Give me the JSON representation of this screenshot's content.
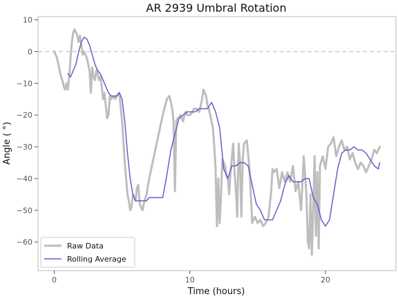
{
  "chart_data": {
    "type": "line",
    "title": "AR 2939 Umbral Rotation",
    "xlabel": "Time (hours)",
    "ylabel": "Angle ( °)",
    "xlim": [
      -1.2,
      25.2
    ],
    "ylim": [
      -69,
      11
    ],
    "x_ticks": [
      0,
      10,
      20
    ],
    "x_tick_labels": [
      "0",
      "10",
      "20"
    ],
    "y_ticks": [
      10,
      0,
      -10,
      -20,
      -30,
      -40,
      -50,
      -60
    ],
    "y_tick_labels": [
      "10",
      "0",
      "−10",
      "−20",
      "−30",
      "−40",
      "−50",
      "−60"
    ],
    "reference_line": {
      "y": 0,
      "style": "dashed"
    },
    "legend": {
      "position": "lower-left",
      "entries": [
        "Raw Data",
        "Rolling Average"
      ]
    },
    "series": [
      {
        "name": "Raw Data",
        "color": "#bdbdbd",
        "x": [
          0,
          0.2,
          0.4,
          0.5,
          0.6,
          0.7,
          0.8,
          0.9,
          1.0,
          1.1,
          1.2,
          1.3,
          1.4,
          1.5,
          1.6,
          1.7,
          1.8,
          1.9,
          2.0,
          2.1,
          2.2,
          2.4,
          2.5,
          2.6,
          2.7,
          2.8,
          2.9,
          3.0,
          3.1,
          3.2,
          3.3,
          3.4,
          3.5,
          3.6,
          3.7,
          3.8,
          3.9,
          4.0,
          4.1,
          4.2,
          4.4,
          4.5,
          4.6,
          4.8,
          5.0,
          5.2,
          5.3,
          5.4,
          5.5,
          5.6,
          5.7,
          5.8,
          5.9,
          6.0,
          6.1,
          6.2,
          6.3,
          6.5,
          6.6,
          6.8,
          7.0,
          7.5,
          8.0,
          8.3,
          8.5,
          8.6,
          8.7,
          8.8,
          8.9,
          9.0,
          9.1,
          9.2,
          9.3,
          9.5,
          9.6,
          9.7,
          9.8,
          10.0,
          10.2,
          10.3,
          10.5,
          10.7,
          10.9,
          11.0,
          11.1,
          11.2,
          11.3,
          11.4,
          11.5,
          11.6,
          11.7,
          11.8,
          11.9,
          12.0,
          12.1,
          12.2,
          12.3,
          12.4,
          12.5,
          12.6,
          12.7,
          12.8,
          12.9,
          13.0,
          13.2,
          13.3,
          13.4,
          13.5,
          13.6,
          13.7,
          13.8,
          13.9,
          14.0,
          14.2,
          14.4,
          14.6,
          14.8,
          15.0,
          15.2,
          15.4,
          15.6,
          15.8,
          16.0,
          16.1,
          16.2,
          16.4,
          16.6,
          16.8,
          17.0,
          17.2,
          17.4,
          17.6,
          17.8,
          18.0,
          18.2,
          18.4,
          18.6,
          18.7,
          18.8,
          18.9,
          19.0,
          19.1,
          19.2,
          19.3,
          19.4,
          19.5,
          19.6,
          19.8,
          20.0,
          20.2,
          20.4,
          20.6,
          20.8,
          21.0,
          21.2,
          21.4,
          21.6,
          21.8,
          22.0,
          22.2,
          22.4,
          22.6,
          22.8,
          23.0,
          23.2,
          23.4,
          23.6,
          23.8,
          24.0
        ],
        "y": [
          0,
          -2,
          -6,
          -8,
          -9,
          -11,
          -12,
          -10,
          -12,
          -8,
          -2,
          3,
          6,
          7,
          6,
          5,
          3,
          5,
          2,
          -1,
          0,
          -2,
          -4,
          -6,
          -13,
          -5,
          -8,
          -9,
          -6,
          -7,
          -9,
          -8,
          -11,
          -15,
          -13,
          -17,
          -21,
          -20,
          -14,
          -15,
          -14,
          -15,
          -14,
          -13,
          -22,
          -35,
          -40,
          -45,
          -47,
          -50,
          -49,
          -45,
          -46,
          -47,
          -43,
          -42,
          -48,
          -50,
          -48,
          -45,
          -40,
          -30,
          -20,
          -15,
          -14,
          -16,
          -18,
          -22,
          -44,
          -22,
          -21,
          -21,
          -20,
          -22,
          -20,
          -19,
          -20,
          -20,
          -19,
          -18,
          -18,
          -19,
          -15,
          -12,
          -13,
          -14,
          -17,
          -18,
          -20,
          -22,
          -24,
          -30,
          -37,
          -55,
          -40,
          -54,
          -45,
          -34,
          -35,
          -36,
          -39,
          -40,
          -45,
          -38,
          -29,
          -38,
          -44,
          -52,
          -29,
          -35,
          -52,
          -34,
          -29,
          -28,
          -37,
          -54,
          -52,
          -54,
          -53,
          -55,
          -54,
          -52,
          -44,
          -37,
          -38,
          -37,
          -43,
          -38,
          -41,
          -38,
          -41,
          -36,
          -44,
          -41,
          -50,
          -33,
          -45,
          -60,
          -62,
          -45,
          -64,
          -50,
          -33,
          -58,
          -38,
          -62,
          -36,
          -33,
          -37,
          -30,
          -29,
          -27,
          -33,
          -30,
          -28,
          -31,
          -30,
          -34,
          -32,
          -35,
          -37,
          -35,
          -36,
          -38,
          -36,
          -34,
          -31,
          -32,
          -30
        ]
      },
      {
        "name": "Rolling Average",
        "color": "#6a5acd",
        "x": [
          1.0,
          1.2,
          1.4,
          1.6,
          1.8,
          2.0,
          2.2,
          2.4,
          2.6,
          2.8,
          3.0,
          3.2,
          3.4,
          3.6,
          3.8,
          4.0,
          4.2,
          4.4,
          4.6,
          4.8,
          5.0,
          5.2,
          5.4,
          5.6,
          5.8,
          6.0,
          6.2,
          6.4,
          6.6,
          6.8,
          7.0,
          7.5,
          8.0,
          8.3,
          8.6,
          8.9,
          9.2,
          9.5,
          9.8,
          10.1,
          10.4,
          10.7,
          11.0,
          11.3,
          11.6,
          11.9,
          12.2,
          12.5,
          12.8,
          13.1,
          13.4,
          13.7,
          14.0,
          14.3,
          14.6,
          14.9,
          15.2,
          15.5,
          15.8,
          16.1,
          16.4,
          16.7,
          17.0,
          17.3,
          17.6,
          17.9,
          18.2,
          18.5,
          18.8,
          19.1,
          19.4,
          19.7,
          20.0,
          20.3,
          20.6,
          20.9,
          21.2,
          21.5,
          21.8,
          22.1,
          22.4,
          22.7,
          23.0,
          23.3,
          23.6,
          23.9,
          24.0
        ],
        "y": [
          -7,
          -8,
          -6,
          -4,
          0,
          3,
          4.5,
          4,
          2,
          -1,
          -4,
          -6,
          -7,
          -9,
          -11,
          -13,
          -14,
          -14,
          -14,
          -13,
          -15,
          -22,
          -32,
          -40,
          -45,
          -47,
          -47,
          -47,
          -47,
          -47,
          -46,
          -46,
          -46,
          -39,
          -31,
          -26,
          -21,
          -20,
          -19,
          -19,
          -19,
          -18,
          -18,
          -18,
          -16,
          -19,
          -24,
          -37,
          -40,
          -36,
          -36,
          -35,
          -35,
          -36,
          -42,
          -48,
          -50,
          -53,
          -53,
          -53,
          -50,
          -47,
          -42,
          -39,
          -41,
          -41,
          -41,
          -40,
          -40,
          -46,
          -48,
          -53,
          -55,
          -53,
          -45,
          -37,
          -32,
          -31,
          -31,
          -30,
          -31,
          -31,
          -32,
          -34,
          -36,
          -37,
          -35
        ]
      }
    ]
  }
}
